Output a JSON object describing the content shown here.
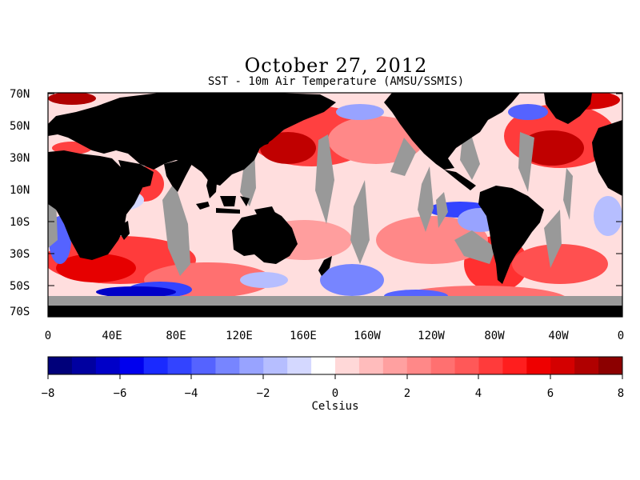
{
  "title": "October 27, 2012",
  "subtitle": "SST - 10m Air Temperature (AMSU/SSMIS)",
  "latitude_labels": [
    "70N",
    "50N",
    "30N",
    "10N",
    "10S",
    "30S",
    "50S",
    "70S"
  ],
  "longitude_labels": [
    "0",
    "40E",
    "80E",
    "120E",
    "160E",
    "160W",
    "120W",
    "80W",
    "40W",
    "0"
  ],
  "colorbar": {
    "ticks": [
      "−8",
      "−6",
      "−4",
      "−2",
      "0",
      "2",
      "4",
      "6",
      "8"
    ],
    "label": "Celsius",
    "range": [
      -8,
      8
    ],
    "colors": [
      "#00007a",
      "#0000a0",
      "#0000c8",
      "#0000ee",
      "#1a2aff",
      "#3344ff",
      "#5563ff",
      "#7785ff",
      "#98a3ff",
      "#b6beff",
      "#d4d8ff",
      "#ffffff",
      "#ffd8d8",
      "#ffbcbc",
      "#ffa0a0",
      "#ff8888",
      "#ff7070",
      "#ff5858",
      "#ff3b3b",
      "#ff1e1e",
      "#ee0000",
      "#d40000",
      "#b00000",
      "#8c0000"
    ]
  },
  "legend_colors": {
    "land": "#000000",
    "no_data": "#999999"
  }
}
